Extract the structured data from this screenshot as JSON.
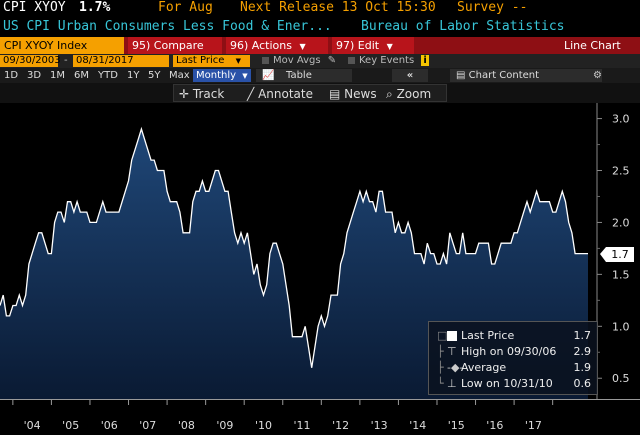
{
  "header": {
    "ticker": "CPI XYOY",
    "value": "1.7%",
    "period": "For Aug",
    "next_release": "Next Release 13 Oct 15:30",
    "survey": "Survey --",
    "description": "US CPI Urban Consumers Less Food & Ener...",
    "source": "Bureau of Labor Statistics"
  },
  "toolbar": {
    "security": "CPI XYOY Index",
    "compare_num": "95)",
    "compare": "Compare",
    "actions_num": "96)",
    "actions": "Actions",
    "edit_num": "97)",
    "edit": "Edit",
    "chart_type": "Line Chart"
  },
  "daterow": {
    "start": "09/30/2003",
    "dash": "-",
    "end": "08/31/2017",
    "field": "Last Price",
    "mov_avgs": "Mov Avgs",
    "key_events": "Key Events",
    "info": "i"
  },
  "periods": [
    "1D",
    "3D",
    "1M",
    "6M",
    "YTD",
    "1Y",
    "5Y",
    "Max"
  ],
  "period_selected": "Monthly",
  "table_label": "Table",
  "collapse_icon": "«",
  "chart_content": "Chart Content",
  "tools": [
    {
      "icon": "track-icon",
      "label": "Track"
    },
    {
      "icon": "annotate-icon",
      "label": "Annotate"
    },
    {
      "icon": "news-icon",
      "label": "News"
    },
    {
      "icon": "zoom-icon",
      "label": "Zoom"
    }
  ],
  "legend": {
    "last_label": "Last Price",
    "last_value": "1.7",
    "high_label": "High on 09/30/06",
    "high_value": "2.9",
    "avg_label": "Average",
    "avg_value": "1.9",
    "low_label": "Low on 10/31/10",
    "low_value": "0.6"
  },
  "last_badge": "1.7",
  "colors": {
    "amber": "#f5a000",
    "cyan": "#38c6d8",
    "toolbar_red": "#8e0f14",
    "line": "#ffffff",
    "area": "#1b3a6b"
  },
  "chart_data": {
    "type": "area",
    "ylim": [
      0.3,
      3.15
    ],
    "yticks": [
      "0.5",
      "1.0",
      "1.5",
      "2.0",
      "2.5",
      "3.0"
    ],
    "xticks": [
      "'04",
      "'05",
      "'06",
      "'07",
      "'08",
      "'09",
      "'10",
      "'11",
      "'12",
      "'13",
      "'14",
      "'15",
      "'16",
      "'17"
    ],
    "grid": false,
    "series": [
      {
        "values": [
          1.2,
          1.3,
          1.1,
          1.1,
          1.2,
          1.2,
          1.3,
          1.2,
          1.3,
          1.6,
          1.7,
          1.8,
          1.9,
          1.9,
          1.8,
          1.7,
          1.7,
          2.0,
          2.1,
          2.1,
          2.0,
          2.2,
          2.2,
          2.1,
          2.2,
          2.1,
          2.1,
          2.1,
          2.0,
          2.0,
          2.0,
          2.1,
          2.2,
          2.1,
          2.1,
          2.1,
          2.1,
          2.1,
          2.2,
          2.3,
          2.4,
          2.6,
          2.7,
          2.8,
          2.9,
          2.8,
          2.7,
          2.6,
          2.6,
          2.5,
          2.5,
          2.5,
          2.3,
          2.2,
          2.2,
          2.2,
          2.1,
          1.9,
          1.9,
          1.9,
          2.2,
          2.3,
          2.3,
          2.4,
          2.3,
          2.3,
          2.4,
          2.5,
          2.5,
          2.4,
          2.3,
          2.3,
          2.1,
          1.9,
          1.8,
          1.9,
          1.8,
          1.9,
          1.7,
          1.5,
          1.6,
          1.4,
          1.3,
          1.4,
          1.7,
          1.8,
          1.8,
          1.7,
          1.6,
          1.4,
          1.2,
          0.9,
          0.9,
          0.9,
          0.9,
          1.0,
          0.8,
          0.6,
          0.8,
          1.0,
          1.1,
          1.0,
          1.1,
          1.3,
          1.3,
          1.3,
          1.6,
          1.7,
          1.9,
          2.0,
          2.1,
          2.2,
          2.3,
          2.2,
          2.3,
          2.2,
          2.2,
          2.1,
          2.3,
          2.3,
          2.1,
          2.1,
          2.1,
          1.9,
          2.0,
          1.9,
          1.9,
          2.0,
          1.9,
          1.7,
          1.7,
          1.7,
          1.6,
          1.8,
          1.7,
          1.7,
          1.6,
          1.6,
          1.7,
          1.6,
          1.9,
          1.8,
          1.7,
          1.7,
          1.9,
          1.7,
          1.7,
          1.7,
          1.7,
          1.8,
          1.8,
          1.8,
          1.8,
          1.6,
          1.6,
          1.7,
          1.8,
          1.8,
          1.8,
          1.8,
          1.9,
          1.9,
          2.0,
          2.1,
          2.2,
          2.1,
          2.2,
          2.3,
          2.2,
          2.2,
          2.2,
          2.2,
          2.1,
          2.1,
          2.2,
          2.3,
          2.2,
          2.0,
          1.9,
          1.7,
          1.7,
          1.7,
          1.7,
          1.7
        ]
      }
    ],
    "last_value": 1.7
  }
}
